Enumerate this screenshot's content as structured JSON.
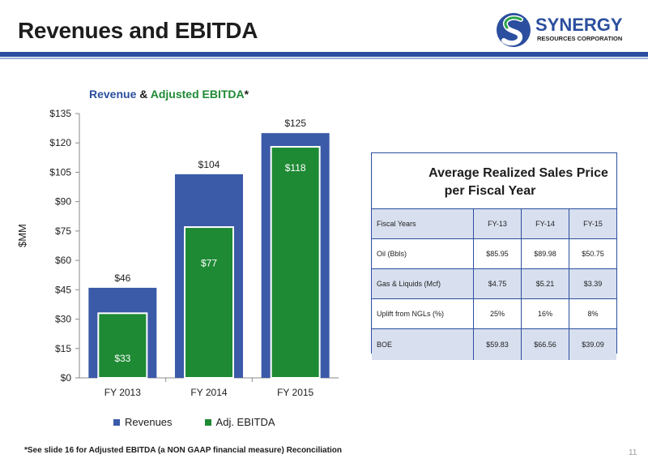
{
  "slide": {
    "title": "Revenues and EBITDA",
    "logo_text": "SYNERGY",
    "logo_subtext": "RESOURCES CORPORATION",
    "footnote": "*See slide 16 for Adjusted EBITDA (a NON GAAP financial measure) Reconciliation",
    "page_number": "11"
  },
  "chart_data": {
    "type": "bar",
    "title_parts": {
      "revenue": "Revenue",
      "amp": " & ",
      "ebitda": "Adjusted EBITDA",
      "star": "*"
    },
    "categories": [
      "FY 2013",
      "FY 2014",
      "FY 2015"
    ],
    "series": [
      {
        "name": "Revenues",
        "values": [
          46,
          104,
          125
        ],
        "labels": [
          "$46",
          "$104",
          "$125"
        ],
        "color": "#3b5aa8"
      },
      {
        "name": "Adj. EBITDA",
        "values": [
          33,
          77,
          118
        ],
        "labels": [
          "$33",
          "$77",
          "$118"
        ],
        "color": "#1e8a34"
      }
    ],
    "ylabel": "$MM",
    "ylim": [
      0,
      135
    ],
    "yticks": [
      0,
      15,
      30,
      45,
      60,
      75,
      90,
      105,
      120,
      135
    ],
    "ytick_labels": [
      "$0",
      "$15",
      "$30",
      "$45",
      "$60",
      "$75",
      "$90",
      "$105",
      "$120",
      "$135"
    ],
    "grid": false,
    "legend_position": "bottom"
  },
  "price_table": {
    "title_line1": "Average Realized Sales Price",
    "title_line2": "per Fiscal Year",
    "header": [
      "Fiscal  Years",
      "FY-13",
      "FY-14",
      "FY-15"
    ],
    "rows": [
      [
        "Oil (Bbls)",
        "$85.95",
        "$89.98",
        "$50.75"
      ],
      [
        "Gas & Liquids (Mcf)",
        "$4.75",
        "$5.21",
        "$3.39"
      ],
      [
        "Uplift from NGLs (%)",
        "25%",
        "16%",
        "8%"
      ],
      [
        "BOE",
        "$59.83",
        "$66.56",
        "$39.09"
      ]
    ]
  },
  "colors": {
    "brand_blue": "#2b4f9e",
    "revenue_bar": "#3b5aa8",
    "ebitda_bar": "#1e8a34",
    "table_shade": "#d8dfee"
  }
}
